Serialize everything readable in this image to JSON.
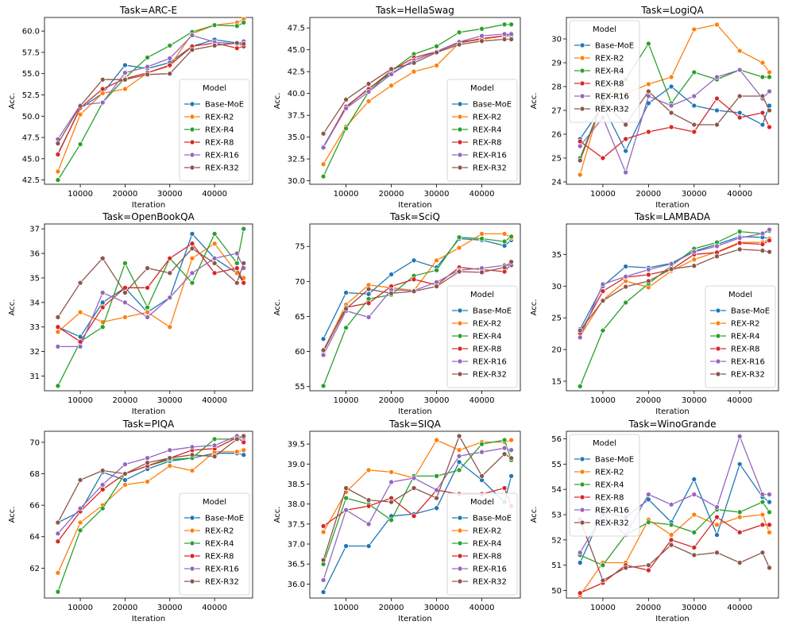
{
  "legend_title": "Model",
  "xlabel": "Iteration",
  "ylabel": "Acc.",
  "colors": {
    "Base-MoE": "#1f77b4",
    "REX-R2": "#ff7f0e",
    "REX-R4": "#2ca02c",
    "REX-R8": "#d62728",
    "REX-R16": "#9467bd",
    "REX-R32": "#8c564b"
  },
  "chart_data": [
    {
      "type": "line",
      "title": "Task=ARC-E",
      "xlabel": "Iteration",
      "ylabel": "Acc.",
      "legend": "lower-right",
      "ylim": [
        42,
        61.6
      ],
      "yticks": [
        42.5,
        45.0,
        47.5,
        50.0,
        52.5,
        55.0,
        57.5,
        60.0
      ],
      "x": [
        5000,
        10000,
        15000,
        20000,
        25000,
        30000,
        35000,
        40000,
        45000,
        46500
      ],
      "series": [
        {
          "name": "Base-MoE",
          "values": [
            45.6,
            50.9,
            52.7,
            56.0,
            55.6,
            56.3,
            58.2,
            59.0,
            58.6,
            58.2
          ]
        },
        {
          "name": "REX-R2",
          "values": [
            43.5,
            50.2,
            52.7,
            53.2,
            55.1,
            55.9,
            59.7,
            60.7,
            61.0,
            61.4
          ]
        },
        {
          "name": "REX-R4",
          "values": [
            42.5,
            46.7,
            51.6,
            54.5,
            56.9,
            58.3,
            59.9,
            60.7,
            60.6,
            61.0
          ]
        },
        {
          "name": "REX-R8",
          "values": [
            45.5,
            51.0,
            53.2,
            54.4,
            55.1,
            56.0,
            58.2,
            58.6,
            58.0,
            58.2
          ]
        },
        {
          "name": "REX-R16",
          "values": [
            47.3,
            51.3,
            51.6,
            55.1,
            55.8,
            56.8,
            59.5,
            58.7,
            58.5,
            58.8
          ]
        },
        {
          "name": "REX-R32",
          "values": [
            46.8,
            51.2,
            54.3,
            54.3,
            54.9,
            55.0,
            57.8,
            58.3,
            58.6,
            58.5
          ]
        }
      ]
    },
    {
      "type": "line",
      "title": "Task=HellaSwag",
      "xlabel": "Iteration",
      "ylabel": "Acc.",
      "legend": "lower-right",
      "ylim": [
        29.6,
        48.7
      ],
      "yticks": [
        30.0,
        32.5,
        35.0,
        37.5,
        40.0,
        42.5,
        45.0,
        47.5
      ],
      "x": [
        5000,
        10000,
        15000,
        20000,
        25000,
        30000,
        35000,
        40000,
        45000,
        46500
      ],
      "series": [
        {
          "name": "Base-MoE",
          "values": [
            33.9,
            38.4,
            40.6,
            42.3,
            43.8,
            44.8,
            45.9,
            46.2,
            46.6,
            46.6
          ]
        },
        {
          "name": "REX-R2",
          "values": [
            31.9,
            36.2,
            39.1,
            40.9,
            42.5,
            43.2,
            45.8,
            46.2,
            46.6,
            46.9
          ]
        },
        {
          "name": "REX-R4",
          "values": [
            30.5,
            36.0,
            40.2,
            42.6,
            44.5,
            45.4,
            47.0,
            47.4,
            47.9,
            47.9
          ]
        },
        {
          "name": "REX-R8",
          "values": [
            33.8,
            38.5,
            40.5,
            42.6,
            44.1,
            44.8,
            45.8,
            46.3,
            46.6,
            46.8
          ]
        },
        {
          "name": "REX-R16",
          "values": [
            33.8,
            38.3,
            40.2,
            42.2,
            43.8,
            44.8,
            45.9,
            46.6,
            46.8,
            46.8
          ]
        },
        {
          "name": "REX-R32",
          "values": [
            35.4,
            39.3,
            41.1,
            42.8,
            43.5,
            44.7,
            45.6,
            46.0,
            46.2,
            46.2
          ]
        }
      ]
    },
    {
      "type": "line",
      "title": "Task=LogiQA",
      "xlabel": "Iteration",
      "ylabel": "Acc.",
      "legend": "upper-left",
      "ylim": [
        23.9,
        30.9
      ],
      "yticks": [
        24,
        25,
        26,
        27,
        28,
        29,
        30
      ],
      "x": [
        5000,
        10000,
        15000,
        20000,
        25000,
        30000,
        35000,
        40000,
        45000,
        46500
      ],
      "series": [
        {
          "name": "Base-MoE",
          "values": [
            25.8,
            27.2,
            25.3,
            27.3,
            28.0,
            27.2,
            27.0,
            26.9,
            26.4,
            27.2
          ]
        },
        {
          "name": "REX-R2",
          "values": [
            24.3,
            27.6,
            27.7,
            28.1,
            28.4,
            30.4,
            30.6,
            29.5,
            29.0,
            28.6
          ]
        },
        {
          "name": "REX-R4",
          "values": [
            25.0,
            27.4,
            28.3,
            29.8,
            27.3,
            28.6,
            28.3,
            28.7,
            28.4,
            28.4
          ]
        },
        {
          "name": "REX-R8",
          "values": [
            25.7,
            25.0,
            25.8,
            26.1,
            26.3,
            26.1,
            27.5,
            26.7,
            26.9,
            26.3
          ]
        },
        {
          "name": "REX-R16",
          "values": [
            25.5,
            26.7,
            24.4,
            27.6,
            27.2,
            27.6,
            28.4,
            28.7,
            27.5,
            27.8
          ]
        },
        {
          "name": "REX-R32",
          "values": [
            24.9,
            27.4,
            26.4,
            27.8,
            26.9,
            26.4,
            26.4,
            27.6,
            27.6,
            27.0
          ]
        }
      ]
    },
    {
      "type": "line",
      "title": "Task=OpenBookQA",
      "xlabel": "Iteration",
      "ylabel": "Acc.",
      "legend": "none",
      "ylim": [
        30.4,
        37.2
      ],
      "yticks": [
        31,
        32,
        33,
        34,
        35,
        36,
        37
      ],
      "x": [
        5000,
        10000,
        15000,
        20000,
        25000,
        30000,
        35000,
        40000,
        45000,
        46500
      ],
      "series": [
        {
          "name": "Base-MoE",
          "values": [
            33.0,
            32.6,
            34.0,
            34.6,
            33.6,
            34.2,
            36.8,
            35.8,
            35.2,
            34.8
          ]
        },
        {
          "name": "REX-R2",
          "values": [
            32.8,
            33.6,
            33.2,
            33.4,
            33.6,
            33.0,
            35.8,
            36.4,
            35.2,
            35.0
          ]
        },
        {
          "name": "REX-R4",
          "values": [
            30.6,
            32.4,
            33.0,
            35.6,
            33.8,
            35.8,
            34.8,
            36.8,
            35.6,
            37.0
          ]
        },
        {
          "name": "REX-R8",
          "values": [
            33.0,
            32.4,
            33.8,
            34.6,
            34.6,
            35.8,
            36.4,
            35.2,
            35.4,
            34.8
          ]
        },
        {
          "name": "REX-R16",
          "values": [
            32.2,
            32.2,
            34.4,
            34.0,
            33.4,
            34.2,
            35.2,
            35.8,
            36.0,
            35.4
          ]
        },
        {
          "name": "REX-R32",
          "values": [
            33.4,
            34.8,
            35.8,
            34.4,
            35.4,
            35.2,
            36.2,
            35.6,
            34.8,
            35.6
          ]
        }
      ]
    },
    {
      "type": "line",
      "title": "Task=SciQ",
      "xlabel": "Iteration",
      "ylabel": "Acc.",
      "legend": "lower-right",
      "ylim": [
        54.4,
        78.2
      ],
      "yticks": [
        55,
        60,
        65,
        70,
        75
      ],
      "x": [
        5000,
        10000,
        15000,
        20000,
        25000,
        30000,
        35000,
        40000,
        45000,
        46500
      ],
      "series": [
        {
          "name": "Base-MoE",
          "values": [
            61.8,
            68.4,
            68.2,
            71.0,
            73.0,
            72.0,
            76.1,
            75.9,
            75.1,
            75.9
          ]
        },
        {
          "name": "REX-R2",
          "values": [
            60.1,
            66.7,
            69.5,
            69.1,
            68.7,
            73.0,
            74.8,
            76.8,
            76.8,
            76.2
          ]
        },
        {
          "name": "REX-R4",
          "values": [
            55.1,
            63.4,
            67.5,
            68.1,
            70.8,
            71.6,
            76.3,
            76.1,
            75.7,
            76.4
          ]
        },
        {
          "name": "REX-R8",
          "values": [
            60.0,
            66.3,
            66.9,
            69.3,
            70.3,
            69.5,
            72.0,
            71.7,
            71.4,
            72.5
          ]
        },
        {
          "name": "REX-R16",
          "values": [
            59.5,
            65.8,
            64.9,
            68.8,
            68.7,
            69.9,
            71.6,
            71.9,
            72.3,
            72.3
          ]
        },
        {
          "name": "REX-R32",
          "values": [
            60.2,
            66.1,
            68.9,
            68.3,
            68.6,
            69.3,
            71.4,
            71.3,
            72.0,
            72.8
          ]
        }
      ]
    },
    {
      "type": "line",
      "title": "Task=LAMBADA",
      "xlabel": "Iteration",
      "ylabel": "Acc.",
      "legend": "lower-right",
      "ylim": [
        13.5,
        39.8
      ],
      "yticks": [
        15,
        20,
        25,
        30,
        35
      ],
      "x": [
        5000,
        10000,
        15000,
        20000,
        25000,
        30000,
        35000,
        40000,
        45000,
        46500
      ],
      "series": [
        {
          "name": "Base-MoE",
          "values": [
            23.2,
            30.0,
            33.1,
            32.9,
            33.6,
            35.5,
            36.6,
            37.8,
            37.7,
            37.5
          ]
        },
        {
          "name": "REX-R2",
          "values": [
            22.1,
            27.8,
            30.8,
            29.8,
            32.4,
            34.2,
            35.4,
            36.9,
            36.9,
            37.5
          ]
        },
        {
          "name": "REX-R4",
          "values": [
            14.2,
            23.0,
            27.4,
            30.4,
            33.2,
            35.9,
            36.9,
            38.6,
            38.3,
            38.7
          ]
        },
        {
          "name": "REX-R8",
          "values": [
            22.6,
            29.2,
            31.4,
            31.8,
            32.6,
            35.0,
            35.3,
            36.8,
            36.6,
            37.2
          ]
        },
        {
          "name": "REX-R16",
          "values": [
            21.9,
            30.3,
            31.5,
            32.6,
            33.5,
            35.4,
            36.3,
            37.6,
            38.3,
            38.9
          ]
        },
        {
          "name": "REX-R32",
          "values": [
            23.0,
            27.7,
            29.9,
            30.8,
            32.7,
            33.2,
            34.7,
            35.8,
            35.6,
            35.4
          ]
        }
      ]
    },
    {
      "type": "line",
      "title": "Task=PIQA",
      "xlabel": "Iteration",
      "ylabel": "Acc.",
      "legend": "lower-right",
      "ylim": [
        60.1,
        70.7
      ],
      "yticks": [
        62,
        64,
        66,
        68,
        70
      ],
      "x": [
        5000,
        10000,
        15000,
        20000,
        25000,
        30000,
        35000,
        40000,
        45000,
        46500
      ],
      "series": [
        {
          "name": "Base-MoE",
          "values": [
            64.9,
            65.6,
            68.1,
            67.6,
            68.3,
            68.8,
            69.0,
            69.3,
            69.3,
            69.2
          ]
        },
        {
          "name": "REX-R2",
          "values": [
            61.7,
            64.9,
            66.0,
            67.3,
            67.5,
            68.5,
            68.2,
            69.4,
            69.4,
            69.5
          ]
        },
        {
          "name": "REX-R4",
          "values": [
            60.5,
            64.4,
            65.8,
            68.0,
            68.5,
            68.9,
            69.0,
            70.2,
            70.2,
            70.1
          ]
        },
        {
          "name": "REX-R8",
          "values": [
            63.7,
            65.6,
            67.0,
            68.0,
            68.5,
            69.0,
            69.5,
            69.6,
            70.3,
            70.0
          ]
        },
        {
          "name": "REX-R16",
          "values": [
            64.2,
            65.8,
            67.3,
            68.6,
            69.0,
            69.5,
            69.7,
            69.8,
            70.4,
            70.3
          ]
        },
        {
          "name": "REX-R32",
          "values": [
            64.9,
            67.6,
            68.2,
            68.0,
            68.7,
            69.0,
            69.2,
            69.1,
            70.2,
            70.4
          ]
        }
      ]
    },
    {
      "type": "line",
      "title": "Task=SIQA",
      "xlabel": "Iteration",
      "ylabel": "Acc.",
      "legend": "lower-right",
      "ylim": [
        35.65,
        39.82
      ],
      "yticks": [
        36.0,
        36.5,
        37.0,
        37.5,
        38.0,
        38.5,
        39.0,
        39.5
      ],
      "x": [
        5000,
        10000,
        15000,
        20000,
        25000,
        30000,
        35000,
        40000,
        45000,
        46500
      ],
      "series": [
        {
          "name": "Base-MoE",
          "values": [
            35.8,
            36.95,
            36.95,
            37.7,
            37.75,
            37.9,
            39.05,
            38.6,
            38.05,
            38.7
          ]
        },
        {
          "name": "REX-R2",
          "values": [
            37.3,
            38.3,
            38.85,
            38.8,
            38.65,
            39.6,
            39.35,
            39.55,
            39.55,
            39.6
          ]
        },
        {
          "name": "REX-R4",
          "values": [
            36.5,
            38.15,
            38.0,
            37.6,
            38.7,
            38.7,
            38.85,
            39.5,
            39.6,
            39.1
          ]
        },
        {
          "name": "REX-R8",
          "values": [
            37.45,
            37.85,
            37.95,
            38.15,
            37.7,
            38.35,
            38.25,
            38.25,
            38.4,
            37.95
          ]
        },
        {
          "name": "REX-R16",
          "values": [
            36.1,
            37.85,
            37.5,
            38.55,
            38.65,
            38.35,
            39.2,
            39.3,
            39.4,
            39.35
          ]
        },
        {
          "name": "REX-R32",
          "values": [
            36.6,
            38.4,
            38.1,
            38.05,
            38.4,
            38.15,
            39.7,
            38.7,
            39.25,
            39.15
          ]
        }
      ]
    },
    {
      "type": "line",
      "title": "Task=WinoGrande",
      "xlabel": "Iteration",
      "ylabel": "Acc.",
      "legend": "upper-left",
      "ylim": [
        49.7,
        56.3
      ],
      "yticks": [
        50,
        51,
        52,
        53,
        54,
        55,
        56
      ],
      "x": [
        5000,
        10000,
        15000,
        20000,
        25000,
        30000,
        35000,
        40000,
        45000,
        46500
      ],
      "series": [
        {
          "name": "Base-MoE",
          "values": [
            51.1,
            53.1,
            52.9,
            53.6,
            52.7,
            54.4,
            52.2,
            55.0,
            53.7,
            53.5
          ]
        },
        {
          "name": "REX-R2",
          "values": [
            49.8,
            51.1,
            51.1,
            52.8,
            52.2,
            53.0,
            52.6,
            52.9,
            53.0,
            52.3
          ]
        },
        {
          "name": "REX-R4",
          "values": [
            51.4,
            51.0,
            52.2,
            52.7,
            52.6,
            52.3,
            53.2,
            53.1,
            53.5,
            53.1
          ]
        },
        {
          "name": "REX-R8",
          "values": [
            49.9,
            50.3,
            51.0,
            50.8,
            52.0,
            51.7,
            52.9,
            52.3,
            52.6,
            52.6
          ]
        },
        {
          "name": "REX-R16",
          "values": [
            51.5,
            53.0,
            52.2,
            53.8,
            53.4,
            53.8,
            53.3,
            56.1,
            53.8,
            53.8
          ]
        },
        {
          "name": "REX-R32",
          "values": [
            52.8,
            50.4,
            50.9,
            51.0,
            51.8,
            51.4,
            51.5,
            51.1,
            51.5,
            50.9
          ]
        }
      ]
    }
  ]
}
